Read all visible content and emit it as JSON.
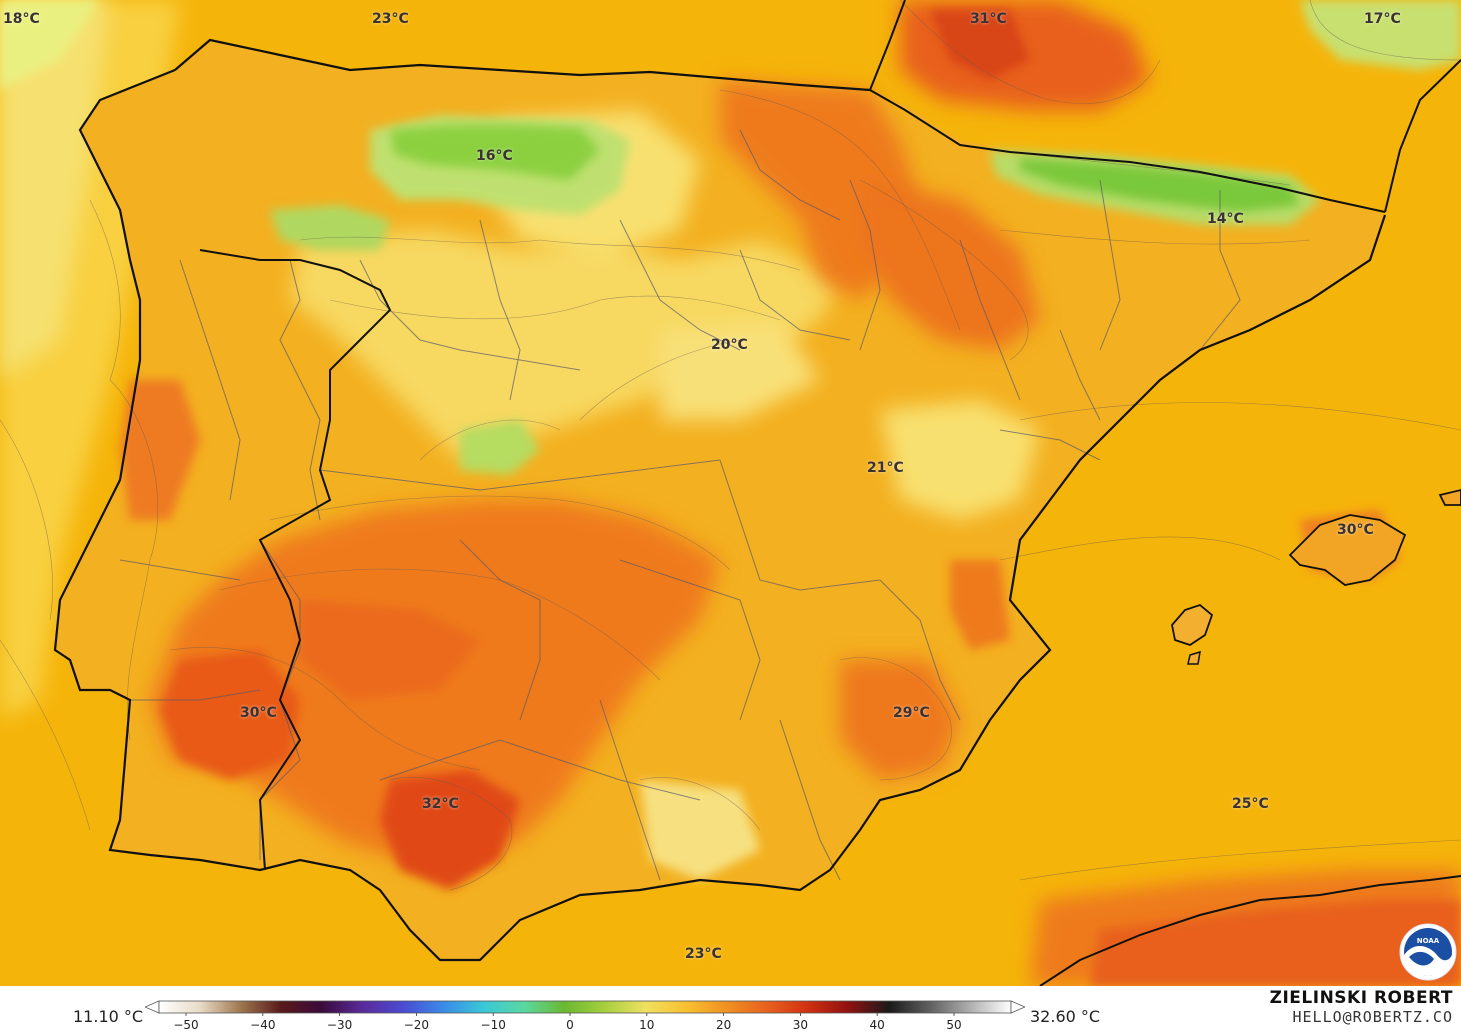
{
  "map": {
    "labels": [
      {
        "text": "18°C"
      },
      {
        "text": "23°C"
      },
      {
        "text": "31°C"
      },
      {
        "text": "17°C"
      },
      {
        "text": "16°C"
      },
      {
        "text": "14°C"
      },
      {
        "text": "20°C"
      },
      {
        "text": "21°C"
      },
      {
        "text": "30°C"
      },
      {
        "text": "30°C"
      },
      {
        "text": "29°C"
      },
      {
        "text": "32°C"
      },
      {
        "text": "25°C"
      },
      {
        "text": "23°C"
      }
    ]
  },
  "legend": {
    "min": "11.10 °C",
    "max": "32.60 °C",
    "ticks": [
      "−50",
      "−40",
      "−30",
      "−20",
      "−10",
      "0",
      "10",
      "20",
      "30",
      "40",
      "50"
    ],
    "colors": [
      "#ffffff",
      "#e8dcc8",
      "#a07850",
      "#5a1a1a",
      "#3a0a3a",
      "#5a2a9a",
      "#4a4ad0",
      "#3a8ae8",
      "#3ac8d8",
      "#5ad8a0",
      "#6ab830",
      "#a8d040",
      "#f0e060",
      "#f8c030",
      "#f09020",
      "#e86020",
      "#d03010",
      "#901010",
      "#1a1a1a",
      "#606060",
      "#b0b0b0",
      "#ffffff"
    ]
  },
  "author": {
    "name": "ZIELINSKI ROBERT",
    "email": "HELLO@ROBERTZ.CO"
  },
  "icons": [
    "noaa-logo"
  ]
}
